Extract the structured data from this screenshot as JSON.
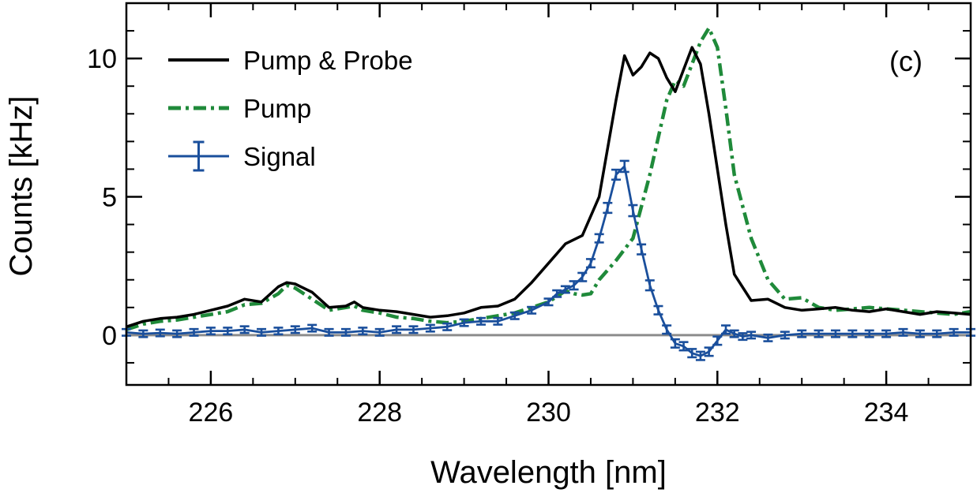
{
  "chart_data": {
    "type": "line",
    "panel_label": "(c)",
    "xlabel": "Wavelength [nm]",
    "ylabel": "Counts [kHz]",
    "xlim": [
      225,
      235
    ],
    "ylim": [
      -1.8,
      12
    ],
    "xticks": [
      226,
      228,
      230,
      232,
      234
    ],
    "xtick_labels": [
      "226",
      "228",
      "230",
      "232",
      "234"
    ],
    "yticks": [
      0,
      5,
      10
    ],
    "ytick_labels": [
      "0",
      "5",
      "10"
    ],
    "x_minor_step": 0.5,
    "y_minor_step": 1,
    "zero_line": true,
    "legend_position": "top-left",
    "colors": {
      "pump_probe": "#000000",
      "pump": "#1f8a3a",
      "signal": "#1a4f9c",
      "zero": "#8c8c8c"
    },
    "series": [
      {
        "name": "Pump & Probe",
        "style": "solid",
        "x": [
          225.0,
          225.2,
          225.4,
          225.6,
          225.8,
          226.0,
          226.2,
          226.4,
          226.6,
          226.8,
          226.9,
          227.0,
          227.2,
          227.4,
          227.6,
          227.7,
          227.8,
          228.0,
          228.2,
          228.4,
          228.6,
          228.8,
          229.0,
          229.2,
          229.4,
          229.6,
          229.8,
          230.0,
          230.2,
          230.4,
          230.6,
          230.8,
          230.9,
          231.0,
          231.1,
          231.2,
          231.3,
          231.4,
          231.5,
          231.6,
          231.7,
          231.8,
          231.9,
          232.0,
          232.1,
          232.2,
          232.4,
          232.6,
          232.8,
          233.0,
          233.2,
          233.4,
          233.6,
          233.8,
          234.0,
          234.2,
          234.4,
          234.6,
          234.8,
          235.0
        ],
        "values": [
          0.3,
          0.5,
          0.6,
          0.65,
          0.75,
          0.9,
          1.05,
          1.3,
          1.2,
          1.75,
          1.9,
          1.85,
          1.55,
          1.0,
          1.05,
          1.2,
          1.0,
          0.9,
          0.85,
          0.75,
          0.65,
          0.7,
          0.8,
          1.0,
          1.05,
          1.3,
          1.9,
          2.6,
          3.3,
          3.6,
          5.0,
          8.5,
          10.1,
          9.4,
          9.7,
          10.2,
          10.0,
          9.3,
          8.8,
          9.6,
          10.4,
          9.8,
          8.0,
          6.0,
          4.0,
          2.2,
          1.25,
          1.3,
          1.0,
          0.9,
          0.95,
          1.0,
          0.9,
          0.85,
          0.95,
          0.85,
          0.75,
          0.85,
          0.8,
          0.75
        ]
      },
      {
        "name": "Pump",
        "style": "dashdot",
        "x": [
          225.0,
          225.2,
          225.4,
          225.6,
          225.8,
          226.0,
          226.2,
          226.4,
          226.6,
          226.8,
          226.9,
          227.0,
          227.2,
          227.4,
          227.6,
          227.7,
          227.8,
          228.0,
          228.2,
          228.4,
          228.6,
          228.8,
          229.0,
          229.2,
          229.4,
          229.6,
          229.8,
          230.0,
          230.2,
          230.3,
          230.4,
          230.5,
          230.6,
          230.8,
          231.0,
          231.2,
          231.4,
          231.5,
          231.6,
          231.7,
          231.8,
          231.9,
          232.0,
          232.1,
          232.2,
          232.4,
          232.6,
          232.8,
          233.0,
          233.2,
          233.4,
          233.6,
          233.8,
          234.0,
          234.2,
          234.4,
          234.6,
          234.8,
          235.0
        ],
        "values": [
          0.2,
          0.4,
          0.5,
          0.55,
          0.65,
          0.75,
          0.85,
          1.1,
          1.15,
          1.5,
          1.8,
          1.7,
          1.3,
          0.9,
          1.0,
          1.05,
          0.9,
          0.8,
          0.65,
          0.6,
          0.5,
          0.45,
          0.5,
          0.6,
          0.7,
          0.8,
          1.0,
          1.2,
          1.6,
          1.5,
          1.45,
          1.5,
          2.0,
          2.7,
          3.5,
          5.8,
          8.5,
          9.2,
          9.0,
          9.8,
          10.6,
          11.1,
          10.4,
          8.2,
          5.8,
          3.5,
          2.0,
          1.3,
          1.35,
          1.0,
          0.9,
          0.95,
          1.0,
          0.95,
          0.9,
          0.85,
          0.8,
          0.75,
          0.85
        ]
      },
      {
        "name": "Signal",
        "style": "solid-errorbars",
        "x": [
          225.0,
          225.2,
          225.4,
          225.6,
          225.8,
          226.0,
          226.2,
          226.4,
          226.6,
          226.8,
          227.0,
          227.2,
          227.4,
          227.6,
          227.8,
          228.0,
          228.2,
          228.4,
          228.6,
          228.8,
          229.0,
          229.2,
          229.4,
          229.6,
          229.8,
          230.0,
          230.1,
          230.2,
          230.3,
          230.4,
          230.5,
          230.6,
          230.7,
          230.8,
          230.9,
          231.0,
          231.1,
          231.2,
          231.3,
          231.4,
          231.5,
          231.6,
          231.7,
          231.8,
          231.9,
          232.0,
          232.1,
          232.2,
          232.3,
          232.4,
          232.6,
          232.8,
          233.0,
          233.2,
          233.4,
          233.6,
          233.8,
          234.0,
          234.2,
          234.4,
          234.6,
          234.8,
          235.0
        ],
        "values": [
          0.1,
          0.05,
          0.08,
          0.05,
          0.1,
          0.15,
          0.15,
          0.2,
          0.1,
          0.15,
          0.2,
          0.25,
          0.1,
          0.1,
          0.15,
          0.1,
          0.2,
          0.2,
          0.25,
          0.3,
          0.45,
          0.5,
          0.5,
          0.7,
          0.9,
          1.2,
          1.5,
          1.65,
          1.8,
          2.1,
          2.6,
          3.5,
          4.6,
          5.8,
          6.1,
          4.5,
          3.1,
          1.8,
          0.9,
          0.2,
          -0.3,
          -0.4,
          -0.65,
          -0.75,
          -0.6,
          -0.2,
          0.2,
          0.05,
          -0.05,
          0.0,
          -0.1,
          0.0,
          0.05,
          0.05,
          0.05,
          0.05,
          0.05,
          0.05,
          0.1,
          0.05,
          0.05,
          0.1,
          0.1
        ],
        "errors": [
          0.08,
          0.08,
          0.08,
          0.08,
          0.08,
          0.08,
          0.08,
          0.08,
          0.08,
          0.08,
          0.1,
          0.1,
          0.08,
          0.08,
          0.08,
          0.08,
          0.08,
          0.08,
          0.08,
          0.1,
          0.1,
          0.1,
          0.1,
          0.1,
          0.12,
          0.12,
          0.12,
          0.12,
          0.15,
          0.15,
          0.15,
          0.15,
          0.18,
          0.18,
          0.2,
          0.2,
          0.18,
          0.18,
          0.15,
          0.15,
          0.15,
          0.15,
          0.15,
          0.15,
          0.15,
          0.15,
          0.15,
          0.12,
          0.12,
          0.1,
          0.1,
          0.1,
          0.1,
          0.1,
          0.1,
          0.1,
          0.1,
          0.1,
          0.1,
          0.1,
          0.1,
          0.1,
          0.1
        ]
      }
    ]
  }
}
